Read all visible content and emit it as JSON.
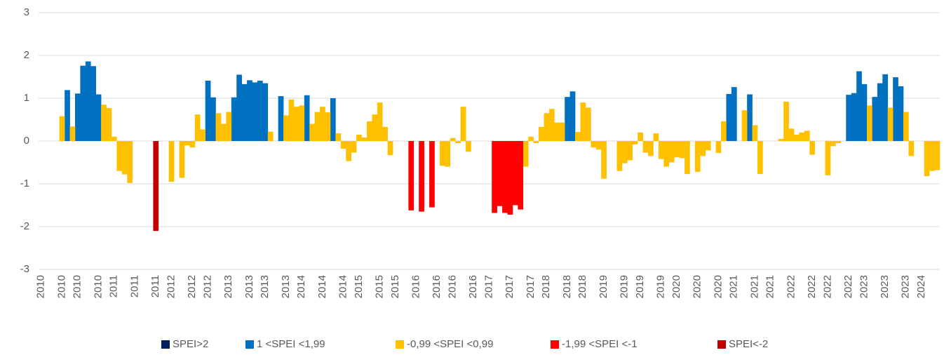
{
  "chart_data": {
    "type": "bar",
    "categories": [
      "2010",
      null,
      null,
      null,
      "2010",
      null,
      null,
      "2010",
      null,
      null,
      null,
      "2010",
      null,
      null,
      "2011",
      null,
      null,
      null,
      "2011",
      null,
      null,
      null,
      "2011",
      null,
      null,
      "2012",
      null,
      null,
      null,
      "2012",
      null,
      null,
      "2012",
      null,
      null,
      null,
      "2013",
      null,
      null,
      null,
      "2013",
      null,
      null,
      "2013",
      null,
      null,
      null,
      "2013",
      null,
      null,
      "2014",
      null,
      null,
      null,
      "2014",
      null,
      null,
      null,
      "2014",
      null,
      null,
      "2015",
      null,
      null,
      null,
      "2015",
      null,
      null,
      "2015",
      null,
      null,
      null,
      "2016",
      null,
      null,
      null,
      "2016",
      null,
      null,
      "2016",
      null,
      null,
      null,
      "2016",
      null,
      null,
      "2017",
      null,
      null,
      null,
      "2017",
      null,
      null,
      null,
      "2017",
      null,
      null,
      "2018",
      null,
      null,
      null,
      "2018",
      null,
      null,
      "2018",
      null,
      null,
      null,
      "2019",
      null,
      null,
      null,
      "2019",
      null,
      null,
      "2019",
      null,
      null,
      null,
      "2019",
      null,
      null,
      "2020",
      null,
      null,
      null,
      "2020",
      null,
      null,
      null,
      "2020",
      null,
      null,
      "2021",
      null,
      null,
      null,
      "2021",
      null,
      null,
      "2021",
      null,
      null,
      null,
      "2022",
      null,
      null,
      null,
      "2022",
      null,
      null,
      "2022",
      null,
      null,
      null,
      "2022",
      null,
      null,
      "2023",
      null,
      null,
      null,
      "2023",
      null,
      null,
      null,
      "2023",
      null,
      null,
      "2024",
      null,
      null,
      null
    ],
    "series": [
      {
        "name": "SPEI>2",
        "color": "#002060",
        "values": [
          null,
          null,
          null,
          null,
          null,
          null,
          null,
          null,
          null,
          null,
          null,
          null,
          null,
          null,
          null,
          null,
          null,
          null,
          null,
          null,
          null,
          null,
          null,
          null,
          null,
          null,
          null,
          null,
          null,
          null,
          null,
          null,
          null,
          null,
          null,
          null,
          null,
          null,
          null,
          null,
          null,
          null,
          null,
          null,
          null,
          null,
          null,
          null,
          null,
          null,
          null,
          null,
          null,
          null,
          null,
          null,
          null,
          null,
          null,
          null,
          null,
          null,
          null,
          null,
          null,
          null,
          null,
          null,
          null,
          null,
          null,
          null,
          null,
          null,
          null,
          null,
          null,
          null,
          null,
          null,
          null,
          null,
          null,
          null,
          null,
          null,
          null,
          null,
          null,
          null,
          null,
          null,
          null,
          null,
          null,
          null,
          null,
          null,
          null,
          null,
          null,
          null,
          null,
          null,
          null,
          null,
          null,
          null,
          null,
          null,
          null,
          null,
          null,
          null,
          null,
          null,
          null,
          null,
          null,
          null,
          null,
          null,
          null,
          null,
          null,
          null,
          null,
          null,
          null,
          null,
          null,
          null,
          null,
          null,
          null,
          null,
          null,
          null,
          null,
          null,
          null,
          null,
          null,
          null,
          null,
          null,
          null,
          null,
          null,
          null,
          null,
          null,
          null,
          null,
          null,
          null,
          null,
          null,
          null,
          null,
          null,
          null,
          null,
          null,
          null,
          null,
          null,
          null,
          null,
          null,
          null,
          null,
          null
        ]
      },
      {
        "name": "1 <SPEI <1,99",
        "color": "#0070c0",
        "values": [
          null,
          null,
          null,
          null,
          null,
          1.19,
          null,
          1.11,
          1.76,
          1.86,
          1.75,
          1.09,
          null,
          null,
          null,
          null,
          null,
          null,
          null,
          null,
          null,
          null,
          null,
          null,
          null,
          null,
          null,
          null,
          null,
          null,
          null,
          null,
          1.41,
          1.02,
          null,
          null,
          null,
          1.02,
          1.55,
          1.33,
          1.42,
          1.37,
          1.41,
          1.35,
          null,
          null,
          1.05,
          null,
          null,
          null,
          null,
          1.07,
          null,
          null,
          null,
          null,
          1.0,
          null,
          null,
          null,
          null,
          null,
          null,
          null,
          null,
          null,
          null,
          null,
          null,
          null,
          null,
          null,
          null,
          null,
          null,
          null,
          null,
          null,
          null,
          null,
          null,
          null,
          null,
          null,
          null,
          null,
          null,
          null,
          null,
          null,
          null,
          null,
          null,
          null,
          null,
          null,
          null,
          null,
          null,
          null,
          null,
          1.03,
          1.16,
          null,
          null,
          null,
          null,
          null,
          null,
          null,
          null,
          null,
          null,
          null,
          null,
          null,
          null,
          null,
          null,
          null,
          null,
          null,
          null,
          null,
          null,
          null,
          null,
          null,
          null,
          null,
          null,
          null,
          1.1,
          1.26,
          null,
          null,
          1.09,
          null,
          null,
          null,
          null,
          null,
          null,
          null,
          null,
          null,
          null,
          null,
          null,
          null,
          null,
          null,
          null,
          null,
          null,
          1.08,
          1.12,
          1.63,
          1.33,
          null,
          1.03,
          1.35,
          1.56,
          null,
          1.49,
          1.28,
          null,
          null,
          null,
          null,
          null,
          null,
          null
        ]
      },
      {
        "name": "-0,99 <SPEI <0,99",
        "color": "#ffc000",
        "values": [
          0,
          0,
          0,
          0,
          0.58,
          null,
          0.34,
          null,
          null,
          null,
          null,
          null,
          0.85,
          0.77,
          0.1,
          -0.7,
          -0.78,
          -0.98,
          0,
          0,
          0,
          0,
          null,
          0,
          0,
          -0.95,
          0,
          -0.86,
          -0.1,
          -0.15,
          0.62,
          0.27,
          null,
          null,
          0.65,
          0.4,
          0.68,
          null,
          null,
          null,
          null,
          null,
          null,
          null,
          0.22,
          0,
          null,
          0.6,
          0.97,
          0.8,
          0.83,
          null,
          0.4,
          0.68,
          0.8,
          0.67,
          null,
          0.18,
          -0.18,
          -0.47,
          -0.27,
          0.15,
          0.08,
          0.46,
          0.62,
          0.9,
          0.33,
          -0.33,
          0,
          0,
          0,
          null,
          0,
          null,
          0,
          null,
          0,
          -0.58,
          -0.6,
          0.07,
          -0.05,
          0.8,
          -0.25,
          0,
          0,
          0,
          0,
          null,
          null,
          null,
          null,
          null,
          null,
          -0.6,
          0.1,
          -0.05,
          0.33,
          0.65,
          0.75,
          0.43,
          0.43,
          null,
          null,
          0.21,
          0.9,
          0.78,
          -0.15,
          -0.2,
          -0.88,
          0,
          0,
          -0.7,
          -0.52,
          -0.45,
          -0.08,
          0.2,
          -0.27,
          -0.35,
          0.18,
          -0.42,
          -0.6,
          -0.5,
          -0.38,
          -0.4,
          -0.77,
          0,
          -0.72,
          -0.35,
          -0.22,
          0,
          -0.28,
          0.46,
          null,
          null,
          0,
          0.72,
          null,
          0.37,
          -0.77,
          0,
          0,
          0,
          0.05,
          0.92,
          0.29,
          0.15,
          0.2,
          0.24,
          -0.32,
          0,
          0,
          -0.8,
          -0.12,
          -0.05,
          0,
          null,
          null,
          null,
          null,
          0.83,
          null,
          null,
          null,
          0.78,
          null,
          null,
          0.68,
          -0.35,
          0,
          0,
          -0.82,
          -0.7,
          -0.68
        ]
      },
      {
        "name": "-1,99 <SPEI <-1",
        "color": "#ff0000",
        "values": [
          null,
          null,
          null,
          null,
          null,
          null,
          null,
          null,
          null,
          null,
          null,
          null,
          null,
          null,
          null,
          null,
          null,
          null,
          null,
          null,
          null,
          null,
          null,
          null,
          null,
          null,
          null,
          null,
          null,
          null,
          null,
          null,
          null,
          null,
          null,
          null,
          null,
          null,
          null,
          null,
          null,
          null,
          null,
          null,
          null,
          null,
          null,
          null,
          null,
          null,
          null,
          null,
          null,
          null,
          null,
          null,
          null,
          null,
          null,
          null,
          null,
          null,
          null,
          null,
          null,
          null,
          null,
          null,
          null,
          null,
          null,
          -1.62,
          null,
          -1.65,
          null,
          -1.55,
          null,
          null,
          null,
          null,
          null,
          null,
          null,
          null,
          null,
          null,
          null,
          -1.68,
          -1.52,
          -1.68,
          -1.72,
          -1.5,
          -1.6,
          null,
          null,
          null,
          null,
          null,
          null,
          null,
          null,
          null,
          null,
          null,
          null,
          null,
          null,
          null,
          null,
          null,
          null,
          null,
          null,
          null,
          null,
          null,
          null,
          null,
          null,
          null,
          null,
          null,
          null,
          null,
          null,
          null,
          null,
          null,
          null,
          null,
          null,
          null,
          null,
          null,
          null,
          null,
          null,
          null,
          null,
          null,
          null,
          null,
          null,
          null,
          null,
          null,
          null,
          null,
          null,
          null,
          null,
          null,
          null,
          null,
          null,
          null,
          null,
          null,
          null,
          null,
          null,
          null,
          null,
          null,
          null,
          null,
          null,
          null,
          null,
          null,
          null,
          null,
          null
        ]
      },
      {
        "name": "SPEI<-2",
        "color": "#c00000",
        "values": [
          null,
          null,
          null,
          null,
          null,
          null,
          null,
          null,
          null,
          null,
          null,
          null,
          null,
          null,
          null,
          null,
          null,
          null,
          null,
          null,
          null,
          null,
          -2.1,
          null,
          null,
          null,
          null,
          null,
          null,
          null,
          null,
          null,
          null,
          null,
          null,
          null,
          null,
          null,
          null,
          null,
          null,
          null,
          null,
          null,
          null,
          null,
          null,
          null,
          null,
          null,
          null,
          null,
          null,
          null,
          null,
          null,
          null,
          null,
          null,
          null,
          null,
          null,
          null,
          null,
          null,
          null,
          null,
          null,
          null,
          null,
          null,
          null,
          null,
          null,
          null,
          null,
          null,
          null,
          null,
          null,
          null,
          null,
          null,
          null,
          null,
          null,
          null,
          null,
          null,
          null,
          null,
          null,
          null,
          null,
          null,
          null,
          null,
          null,
          null,
          null,
          null,
          null,
          null,
          null,
          null,
          null,
          null,
          null,
          null,
          null,
          null,
          null,
          null,
          null,
          null,
          null,
          null,
          null,
          null,
          null,
          null,
          null,
          null,
          null,
          null,
          null,
          null,
          null,
          null,
          null,
          null,
          null,
          null,
          null,
          null,
          null,
          null,
          null,
          null,
          null,
          null,
          null,
          null,
          null,
          null,
          null,
          null,
          null,
          null,
          null,
          null,
          null,
          null,
          null,
          null,
          null,
          null,
          null,
          null,
          null,
          null,
          null,
          null,
          null,
          null,
          null,
          null,
          null,
          null,
          null,
          null,
          null,
          null
        ]
      }
    ],
    "ylim": [
      -3,
      3
    ],
    "yticks": [
      -3,
      -2,
      -1,
      0,
      1,
      2,
      3
    ],
    "grid": true,
    "legend": "bottom"
  }
}
